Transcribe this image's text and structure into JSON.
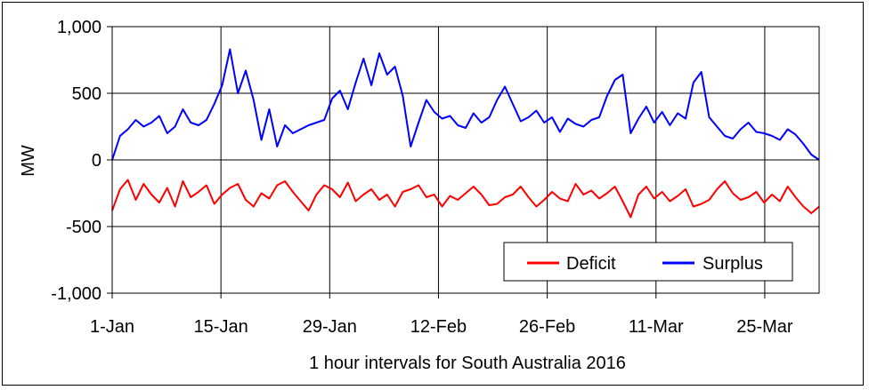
{
  "chart_data": {
    "type": "line",
    "xlabel": "1 hour intervals for South Australia 2016",
    "ylabel": "MW",
    "ylim": [
      -1000,
      1000
    ],
    "xlim_days": [
      0,
      91
    ],
    "yticks": [
      "1,000",
      "500",
      "0",
      "-500",
      "-1,000"
    ],
    "ytick_values": [
      1000,
      500,
      0,
      -500,
      -1000
    ],
    "xticks": [
      "1-Jan",
      "15-Jan",
      "29-Jan",
      "12-Feb",
      "26-Feb",
      "11-Mar",
      "25-Mar"
    ],
    "xtick_values": [
      0,
      14,
      28,
      42,
      56,
      70,
      84
    ],
    "grid": true,
    "legend_position": "bottom-right",
    "series": [
      {
        "name": "Deficit",
        "color": "#ff0000",
        "values": [
          -380,
          -220,
          -150,
          -300,
          -180,
          -260,
          -320,
          -210,
          -350,
          -160,
          -280,
          -240,
          -190,
          -330,
          -260,
          -210,
          -180,
          -300,
          -350,
          -250,
          -290,
          -190,
          -160,
          -240,
          -310,
          -380,
          -260,
          -190,
          -220,
          -280,
          -170,
          -310,
          -260,
          -220,
          -300,
          -260,
          -350,
          -240,
          -220,
          -190,
          -280,
          -260,
          -350,
          -270,
          -300,
          -250,
          -200,
          -260,
          -340,
          -330,
          -280,
          -260,
          -200,
          -280,
          -350,
          -300,
          -240,
          -290,
          -310,
          -180,
          -260,
          -230,
          -290,
          -250,
          -200,
          -310,
          -430,
          -260,
          -200,
          -290,
          -240,
          -310,
          -270,
          -220,
          -350,
          -330,
          -300,
          -220,
          -160,
          -250,
          -300,
          -280,
          -240,
          -320,
          -260,
          -310,
          -200,
          -280,
          -350,
          -400,
          -350
        ]
      },
      {
        "name": "Surplus",
        "color": "#0000ff",
        "values": [
          0,
          180,
          230,
          300,
          250,
          280,
          330,
          200,
          250,
          380,
          280,
          260,
          300,
          420,
          560,
          830,
          500,
          670,
          450,
          150,
          380,
          100,
          260,
          200,
          230,
          260,
          280,
          300,
          460,
          520,
          380,
          580,
          760,
          560,
          800,
          640,
          700,
          480,
          100,
          280,
          450,
          360,
          310,
          330,
          260,
          240,
          350,
          280,
          320,
          450,
          550,
          420,
          290,
          320,
          370,
          280,
          320,
          210,
          310,
          270,
          250,
          300,
          320,
          480,
          600,
          640,
          200,
          310,
          400,
          280,
          360,
          260,
          350,
          310,
          580,
          660,
          320,
          250,
          180,
          160,
          230,
          280,
          210,
          200,
          180,
          150,
          230,
          190,
          120,
          40,
          0
        ]
      }
    ]
  }
}
